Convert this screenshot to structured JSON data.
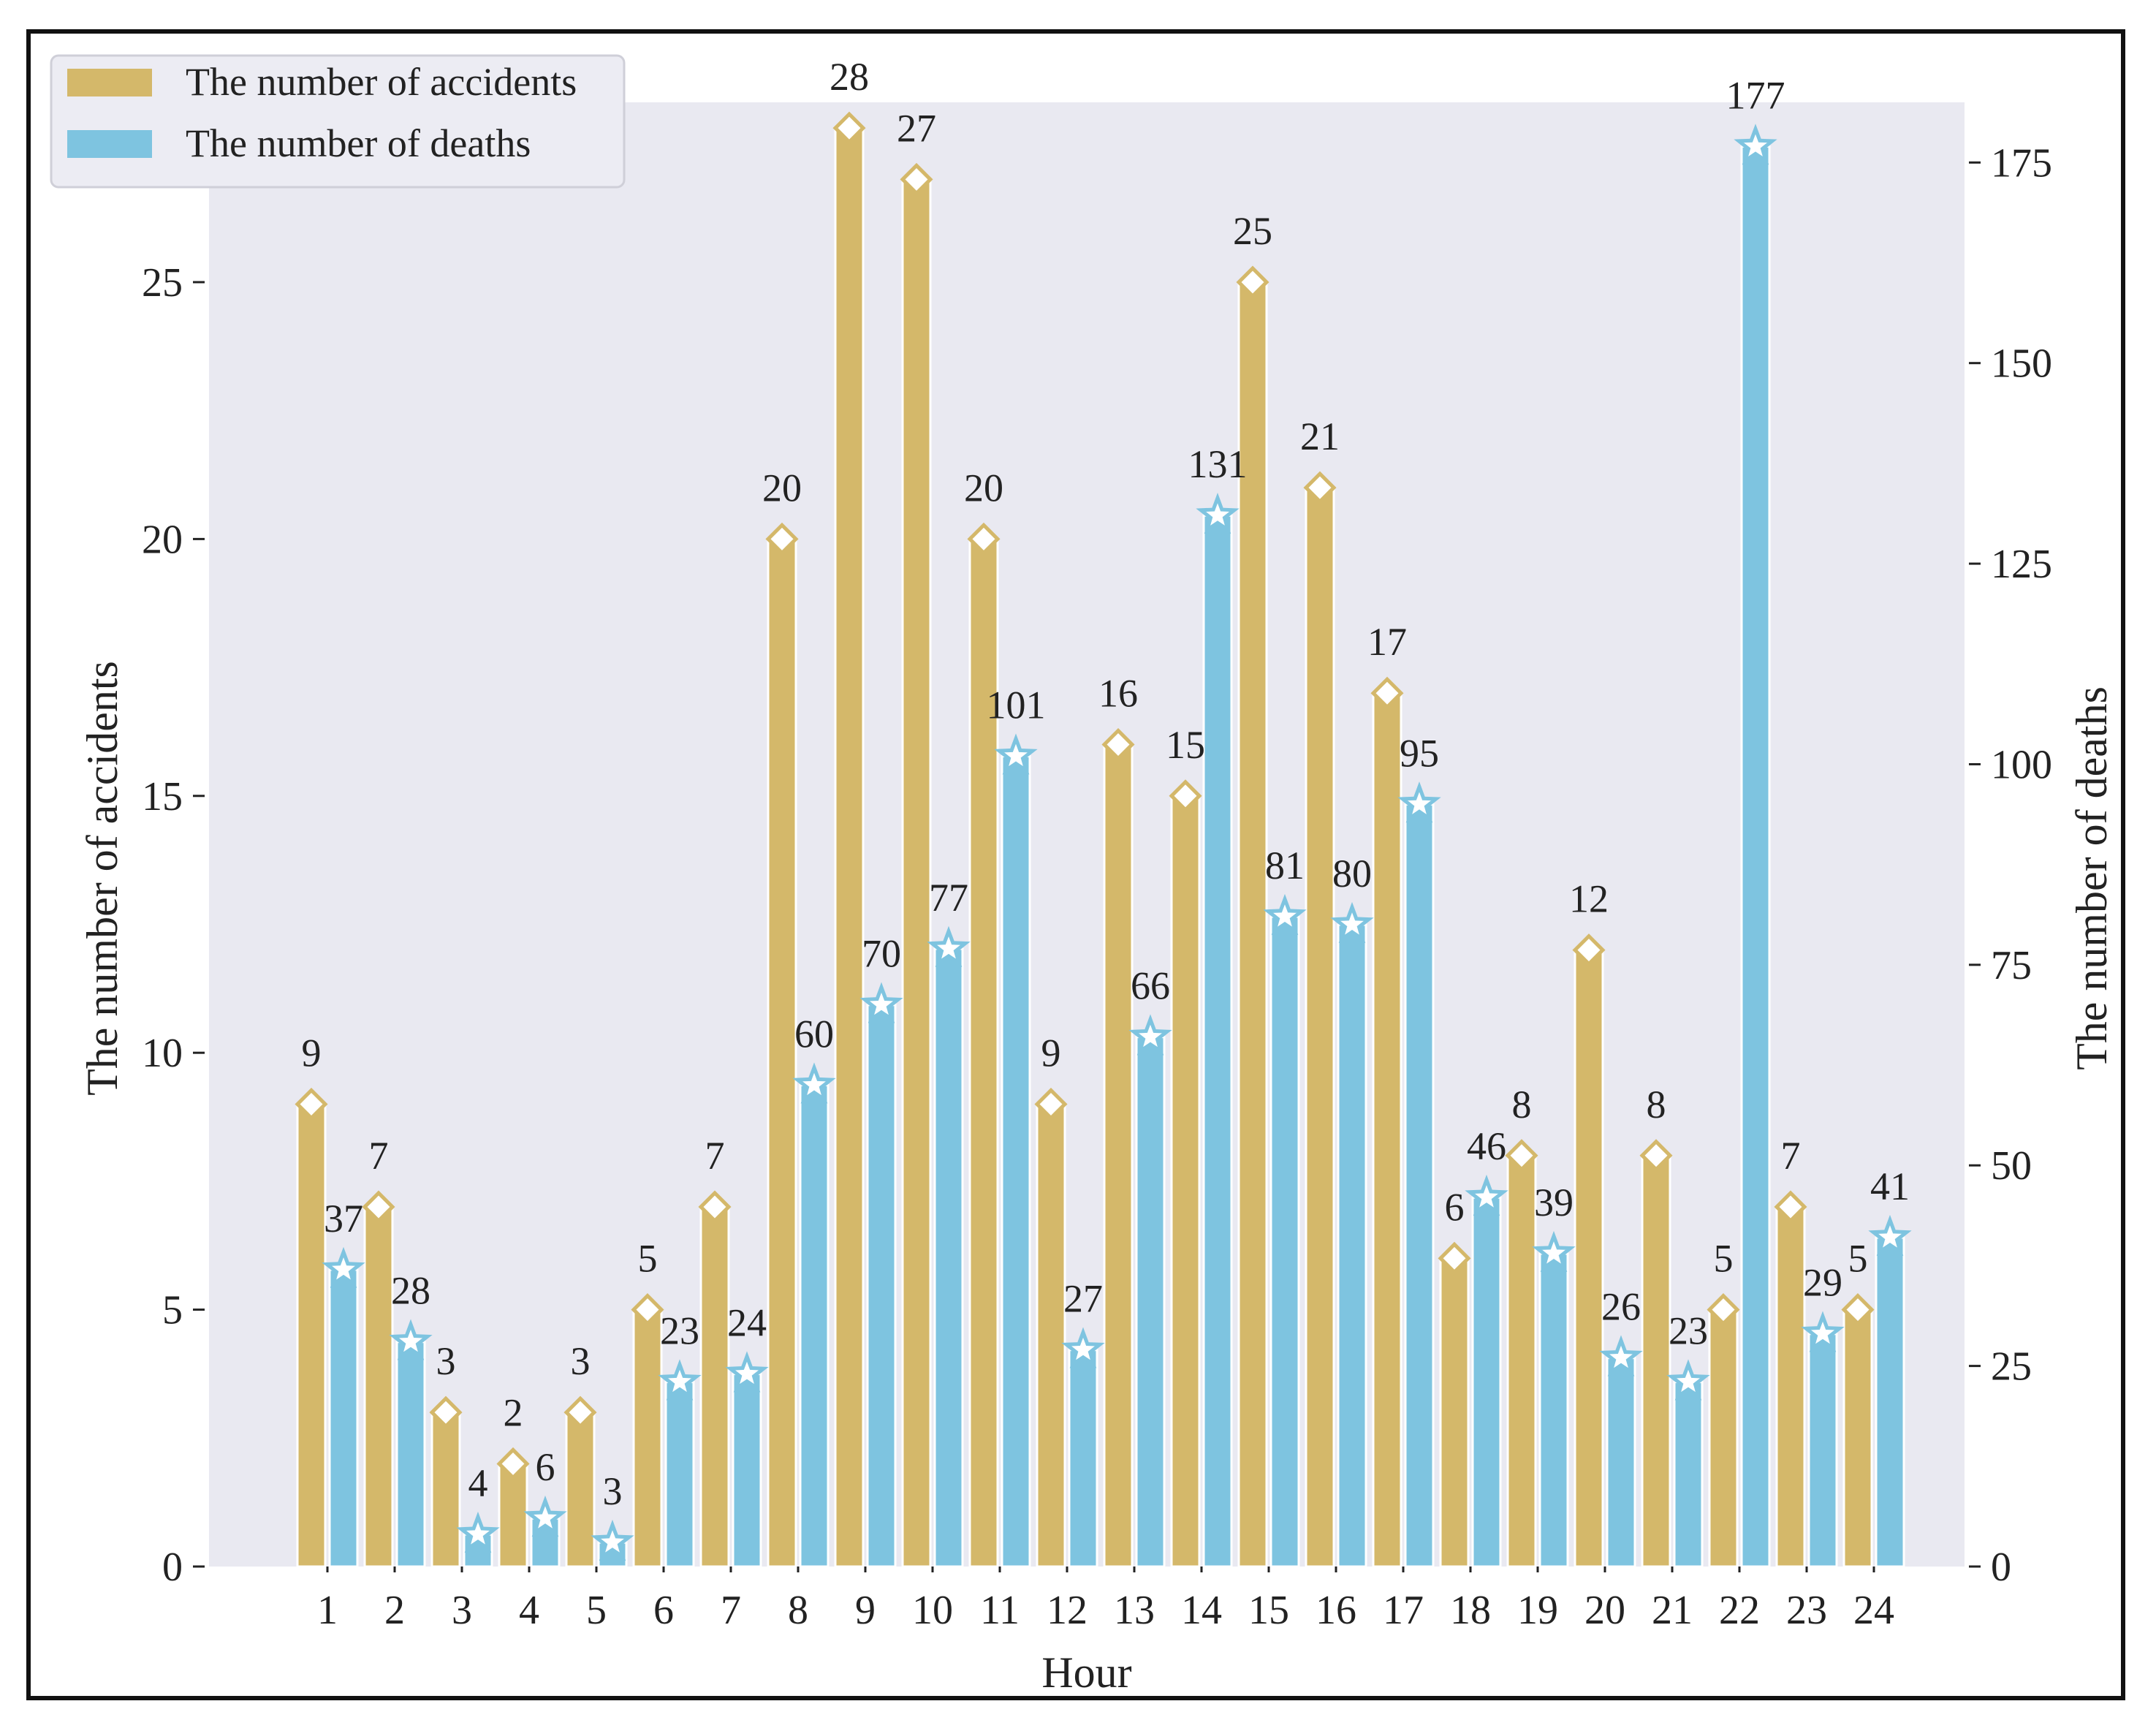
{
  "chart_data": {
    "type": "bar",
    "xlabel": "Hour",
    "ylabel_left": "The number of accidents",
    "ylabel_right": "The number of deaths",
    "ylim_left": [
      0,
      28.5
    ],
    "ylim_right": [
      0,
      182.5
    ],
    "yticks_left": [
      0,
      5,
      10,
      15,
      20,
      25
    ],
    "yticks_right": [
      0,
      25,
      50,
      75,
      100,
      125,
      150,
      175
    ],
    "categories": [
      "1",
      "2",
      "3",
      "4",
      "5",
      "6",
      "7",
      "8",
      "9",
      "10",
      "11",
      "12",
      "13",
      "14",
      "15",
      "16",
      "17",
      "18",
      "19",
      "20",
      "21",
      "22",
      "23",
      "24"
    ],
    "series": [
      {
        "name": "The number of accidents",
        "axis": "left",
        "marker": "diamond",
        "values": [
          9,
          7,
          3,
          2,
          3,
          5,
          7,
          20,
          28,
          27,
          20,
          9,
          16,
          15,
          25,
          21,
          17,
          6,
          8,
          12,
          8,
          5,
          7,
          5
        ]
      },
      {
        "name": "The number of deaths",
        "axis": "right",
        "marker": "star",
        "values": [
          37,
          28,
          4,
          6,
          3,
          23,
          24,
          60,
          70,
          77,
          101,
          27,
          66,
          131,
          81,
          80,
          95,
          46,
          39,
          26,
          23,
          177,
          29,
          41
        ]
      }
    ],
    "legend": [
      "The number of accidents",
      "The number of deaths"
    ],
    "legend_position": "top-left",
    "grid": false
  },
  "colors": {
    "accidents": "#D4B86A",
    "deaths": "#7EC4E0",
    "plot_bg": "#E9E9F1",
    "marker_fill": "#ffffff"
  }
}
